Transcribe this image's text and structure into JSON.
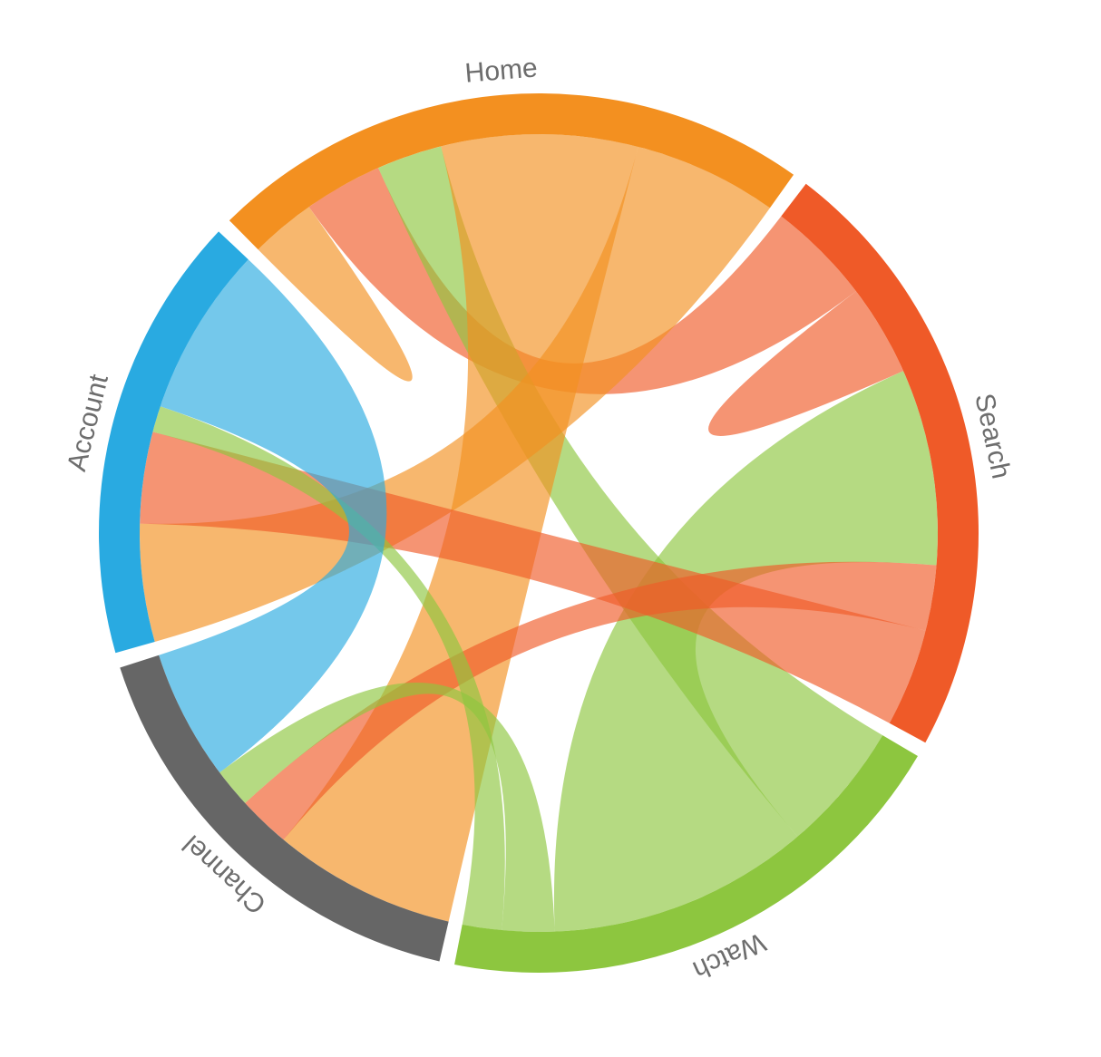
{
  "chart_data": {
    "type": "chord",
    "groups": [
      "Home",
      "Search",
      "Watch",
      "Channel",
      "Account"
    ],
    "colors": [
      "#f39020",
      "#ef5a28",
      "#8dc63f",
      "#666666",
      "#29aae1"
    ],
    "matrix": [
      [
        10,
        12,
        10,
        30,
        22
      ],
      [
        16,
        14,
        30,
        10,
        15
      ],
      [
        20,
        40,
        0,
        8,
        6
      ],
      [
        28,
        8,
        6,
        0,
        20
      ],
      [
        18,
        14,
        4,
        26,
        0
      ]
    ]
  }
}
